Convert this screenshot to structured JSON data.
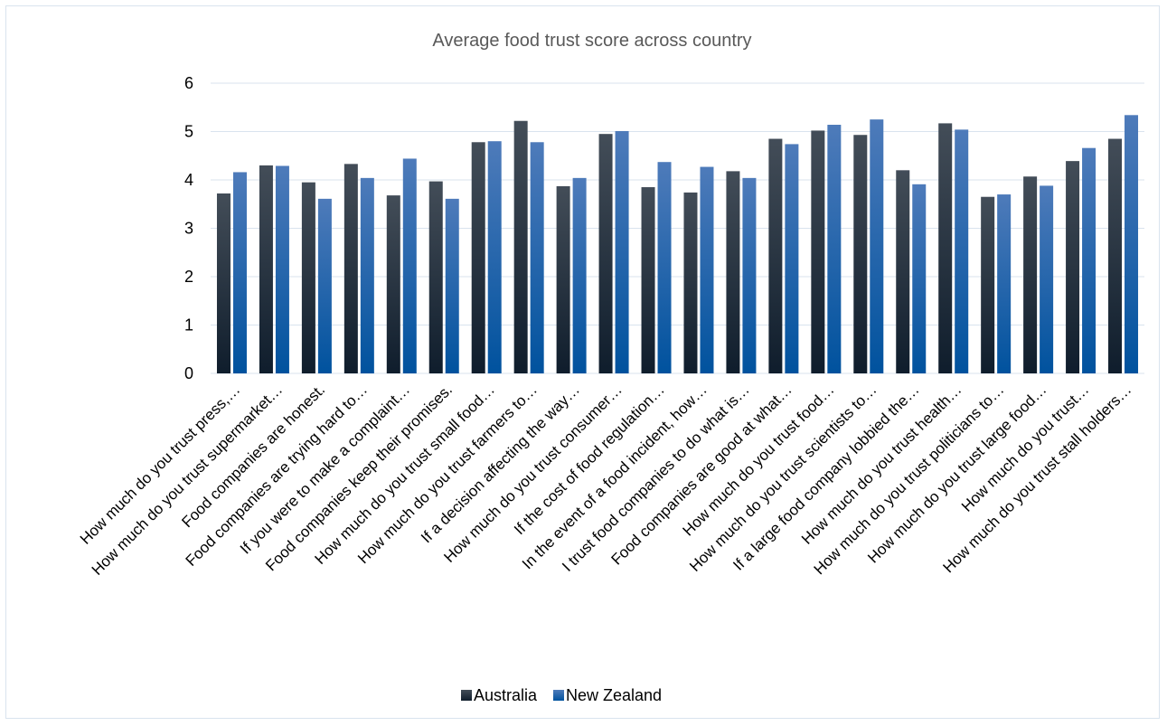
{
  "chart_data": {
    "type": "bar",
    "title": "Average food trust score across country",
    "xlabel": "",
    "ylabel": "",
    "ylim": [
      0,
      6
    ],
    "yticks": [
      0,
      1,
      2,
      3,
      4,
      5,
      6
    ],
    "grid": true,
    "legend_position": "bottom",
    "categories": [
      "How much do you trust press,…",
      "How much do you trust supermarket…",
      "Food companies are honest.",
      "Food companies are trying hard to…",
      "If you were to make a complaint…",
      "Food companies keep their promises.",
      "How much do you trust small food…",
      "How much do you trust farmers to…",
      "If a decision affecting the way…",
      "How much do you trust consumer…",
      "If the cost of food regulation…",
      "In the event of a food incident, how…",
      "I trust food companies to do what is…",
      "Food companies are good at what…",
      "How much do you trust food…",
      "How much do you trust scientists to…",
      "If a large food company lobbied the…",
      "How much do you trust health…",
      "How much do you trust politicians to…",
      "How much do you trust large food…",
      "How much do you trust…",
      "How much do you trust stall holders…"
    ],
    "series": [
      {
        "name": "Australia",
        "color": "#1e2a3a",
        "values": [
          3.72,
          4.3,
          3.95,
          4.33,
          3.68,
          3.97,
          4.78,
          5.22,
          3.87,
          4.95,
          3.85,
          3.74,
          4.18,
          4.85,
          5.02,
          4.93,
          4.2,
          5.17,
          3.65,
          4.07,
          4.39,
          4.85
        ]
      },
      {
        "name": "New Zealand",
        "color": "#2f5fa3",
        "values": [
          4.16,
          4.29,
          3.61,
          4.04,
          4.44,
          3.61,
          4.8,
          4.78,
          4.04,
          5.01,
          4.37,
          4.27,
          4.04,
          4.74,
          5.14,
          5.25,
          3.91,
          5.04,
          3.7,
          3.88,
          4.66,
          5.34
        ]
      }
    ]
  }
}
